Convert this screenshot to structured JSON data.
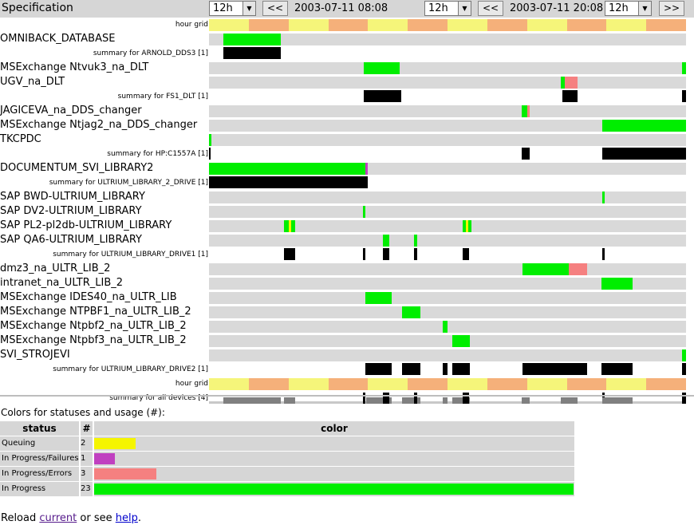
{
  "header": {
    "title": "Specification",
    "range1": {
      "select": "12h",
      "prev": "<<",
      "datetime": "2003-07-11 08:08"
    },
    "range2": {
      "select": "12h",
      "prev": "<<",
      "datetime": "2003-07-11 20:08",
      "select2": "12h",
      "next": ">>"
    }
  },
  "colors": {
    "queuing": "#f5f500",
    "failures": "#c040c0",
    "errors": "#f58080",
    "progress": "#00ee00",
    "summary": "#000000",
    "hour_a": "#f5f57a",
    "hour_b": "#f5b07a",
    "usage": "#808080",
    "track": "#d9d9d9"
  },
  "hour_grid_label": "hour grid",
  "rows": [
    {
      "type": "hour",
      "label": "hour grid"
    },
    {
      "type": "device",
      "label": "OMNIBACK_DATABASE",
      "segments": [
        {
          "s": 0.03,
          "e": 0.15,
          "c": "progress"
        }
      ]
    },
    {
      "type": "summary",
      "label": "summary for ARNOLD_DDS3 [1]",
      "segments": [
        {
          "s": 0.03,
          "e": 0.15,
          "c": "summary"
        }
      ]
    },
    {
      "type": "device",
      "label": "MSExchange Ntvuk3_na_DLT",
      "segments": [
        {
          "s": 0.325,
          "e": 0.4,
          "c": "progress"
        },
        {
          "s": 0.992,
          "e": 1.0,
          "c": "progress"
        }
      ]
    },
    {
      "type": "device",
      "label": "UGV_na_DLT",
      "segments": [
        {
          "s": 0.738,
          "e": 0.745,
          "c": "progress"
        },
        {
          "s": 0.745,
          "e": 0.773,
          "c": "errors"
        }
      ]
    },
    {
      "type": "summary",
      "label": "summary for FS1_DLT [1]",
      "segments": [
        {
          "s": 0.325,
          "e": 0.403,
          "c": "summary"
        },
        {
          "s": 0.74,
          "e": 0.773,
          "c": "summary"
        },
        {
          "s": 0.992,
          "e": 1.0,
          "c": "summary"
        }
      ]
    },
    {
      "type": "device",
      "label": "JAGICEVA_na_DDS_changer",
      "segments": [
        {
          "s": 0.656,
          "e": 0.668,
          "c": "progress"
        },
        {
          "s": 0.668,
          "e": 0.672,
          "c": "errors"
        }
      ]
    },
    {
      "type": "device",
      "label": "MSExchange Ntjag2_na_DDS_changer",
      "segments": [
        {
          "s": 0.825,
          "e": 1.0,
          "c": "progress"
        }
      ]
    },
    {
      "type": "device",
      "label": "TKCPDC",
      "segments": [
        {
          "s": 0.0,
          "e": 0.005,
          "c": "progress"
        }
      ]
    },
    {
      "type": "summary",
      "label": "summary for HP:C1557A [1]",
      "segments": [
        {
          "s": 0.0,
          "e": 0.004,
          "c": "summary"
        },
        {
          "s": 0.656,
          "e": 0.672,
          "c": "summary"
        },
        {
          "s": 0.825,
          "e": 1.0,
          "c": "summary"
        }
      ]
    },
    {
      "type": "device",
      "label": "DOCUMENTUM_SVI_LIBRARY2",
      "segments": [
        {
          "s": 0.0,
          "e": 0.328,
          "c": "progress"
        },
        {
          "s": 0.328,
          "e": 0.333,
          "c": "failures"
        }
      ]
    },
    {
      "type": "summary",
      "label": "summary for ULTRIUM_LIBRARY_2_DRIVE [1]",
      "segments": [
        {
          "s": 0.0,
          "e": 0.333,
          "c": "summary"
        }
      ]
    },
    {
      "type": "device",
      "label": "SAP BWD-ULTRIUM_LIBRARY",
      "segments": [
        {
          "s": 0.825,
          "e": 0.83,
          "c": "progress"
        }
      ]
    },
    {
      "type": "device",
      "label": "SAP DV2-ULTRIUM_LIBRARY",
      "segments": [
        {
          "s": 0.322,
          "e": 0.327,
          "c": "progress"
        }
      ]
    },
    {
      "type": "device",
      "label": "SAP PL2-pl2db-ULTRIUM_LIBRARY",
      "segments": [
        {
          "s": 0.157,
          "e": 0.167,
          "c": "progress"
        },
        {
          "s": 0.167,
          "e": 0.172,
          "c": "queuing"
        },
        {
          "s": 0.172,
          "e": 0.18,
          "c": "progress"
        },
        {
          "s": 0.532,
          "e": 0.538,
          "c": "progress"
        },
        {
          "s": 0.538,
          "e": 0.543,
          "c": "queuing"
        },
        {
          "s": 0.543,
          "e": 0.55,
          "c": "progress"
        }
      ]
    },
    {
      "type": "device",
      "label": "SAP QA6-ULTRIUM_LIBRARY",
      "segments": [
        {
          "s": 0.365,
          "e": 0.378,
          "c": "progress"
        },
        {
          "s": 0.43,
          "e": 0.437,
          "c": "progress"
        }
      ]
    },
    {
      "type": "summary",
      "label": "summary for ULTRIUM_LIBRARY_DRIVE1 [1]",
      "segments": [
        {
          "s": 0.157,
          "e": 0.18,
          "c": "summary"
        },
        {
          "s": 0.322,
          "e": 0.327,
          "c": "summary"
        },
        {
          "s": 0.365,
          "e": 0.378,
          "c": "summary"
        },
        {
          "s": 0.43,
          "e": 0.437,
          "c": "summary"
        },
        {
          "s": 0.532,
          "e": 0.545,
          "c": "summary"
        },
        {
          "s": 0.825,
          "e": 0.83,
          "c": "summary"
        }
      ]
    },
    {
      "type": "device",
      "label": "dmz3_na_ULTR_LIB_2",
      "segments": [
        {
          "s": 0.658,
          "e": 0.755,
          "c": "progress"
        },
        {
          "s": 0.755,
          "e": 0.792,
          "c": "errors"
        }
      ]
    },
    {
      "type": "device",
      "label": "intranet_na_ULTR_LIB_2",
      "segments": [
        {
          "s": 0.822,
          "e": 0.888,
          "c": "progress"
        }
      ]
    },
    {
      "type": "device",
      "label": "MSExchange IDES40_na_ULTR_LIB",
      "segments": [
        {
          "s": 0.327,
          "e": 0.383,
          "c": "progress"
        }
      ]
    },
    {
      "type": "device",
      "label": "MSExchange NTPBF1_na_ULTR_LIB_2",
      "segments": [
        {
          "s": 0.405,
          "e": 0.443,
          "c": "progress"
        }
      ]
    },
    {
      "type": "device",
      "label": "MSExchange Ntpbf2_na_ULTR_LIB_2",
      "segments": [
        {
          "s": 0.49,
          "e": 0.5,
          "c": "progress"
        }
      ]
    },
    {
      "type": "device",
      "label": "MSExchange Ntpbf3_na_ULTR_LIB_2",
      "segments": [
        {
          "s": 0.51,
          "e": 0.547,
          "c": "progress"
        }
      ]
    },
    {
      "type": "device",
      "label": "SVI_STROJEVI",
      "segments": [
        {
          "s": 0.992,
          "e": 1.0,
          "c": "progress"
        }
      ]
    },
    {
      "type": "summary",
      "label": "summary for ULTRIUM_LIBRARY_DRIVE2 [1]",
      "segments": [
        {
          "s": 0.327,
          "e": 0.383,
          "c": "summary"
        },
        {
          "s": 0.405,
          "e": 0.443,
          "c": "summary"
        },
        {
          "s": 0.49,
          "e": 0.5,
          "c": "summary"
        },
        {
          "s": 0.51,
          "e": 0.547,
          "c": "summary"
        },
        {
          "s": 0.658,
          "e": 0.792,
          "c": "summary"
        },
        {
          "s": 0.822,
          "e": 0.888,
          "c": "summary"
        },
        {
          "s": 0.992,
          "e": 1.0,
          "c": "summary"
        }
      ]
    },
    {
      "type": "hour",
      "label": "hour grid"
    },
    {
      "type": "usage",
      "label": "summary for all devices [4]",
      "segments": [
        {
          "s": 0.03,
          "e": 0.15,
          "c": "usage"
        },
        {
          "s": 0.157,
          "e": 0.18,
          "c": "usage"
        },
        {
          "s": 0.322,
          "e": 0.327,
          "c": "summary"
        },
        {
          "s": 0.33,
          "e": 0.383,
          "c": "usage"
        },
        {
          "s": 0.365,
          "e": 0.378,
          "c": "summary"
        },
        {
          "s": 0.405,
          "e": 0.443,
          "c": "usage"
        },
        {
          "s": 0.43,
          "e": 0.437,
          "c": "summary"
        },
        {
          "s": 0.49,
          "e": 0.5,
          "c": "usage"
        },
        {
          "s": 0.51,
          "e": 0.547,
          "c": "usage"
        },
        {
          "s": 0.532,
          "e": 0.545,
          "c": "summary"
        },
        {
          "s": 0.656,
          "e": 0.672,
          "c": "usage"
        },
        {
          "s": 0.738,
          "e": 0.773,
          "c": "usage"
        },
        {
          "s": 0.825,
          "e": 0.83,
          "c": "summary"
        },
        {
          "s": 0.825,
          "e": 0.888,
          "c": "usage"
        },
        {
          "s": 0.992,
          "e": 1.0,
          "c": "summary"
        }
      ]
    }
  ],
  "legend": {
    "title": "Colors for statuses and usage (#):",
    "col_status": "status",
    "col_count": "#",
    "col_color": "color",
    "rows": [
      {
        "status": "Queuing",
        "count": "2",
        "c": "queuing",
        "frac": 0.087
      },
      {
        "status": "In Progress/Failures",
        "count": "1",
        "c": "failures",
        "frac": 0.043
      },
      {
        "status": "In Progress/Errors",
        "count": "3",
        "c": "errors",
        "frac": 0.13
      },
      {
        "status": "In Progress",
        "count": "23",
        "c": "progress",
        "frac": 1.0
      }
    ]
  },
  "footer": {
    "prefix": "Reload ",
    "current": "current",
    "middle": " or see ",
    "help": "help",
    "suffix": "."
  }
}
